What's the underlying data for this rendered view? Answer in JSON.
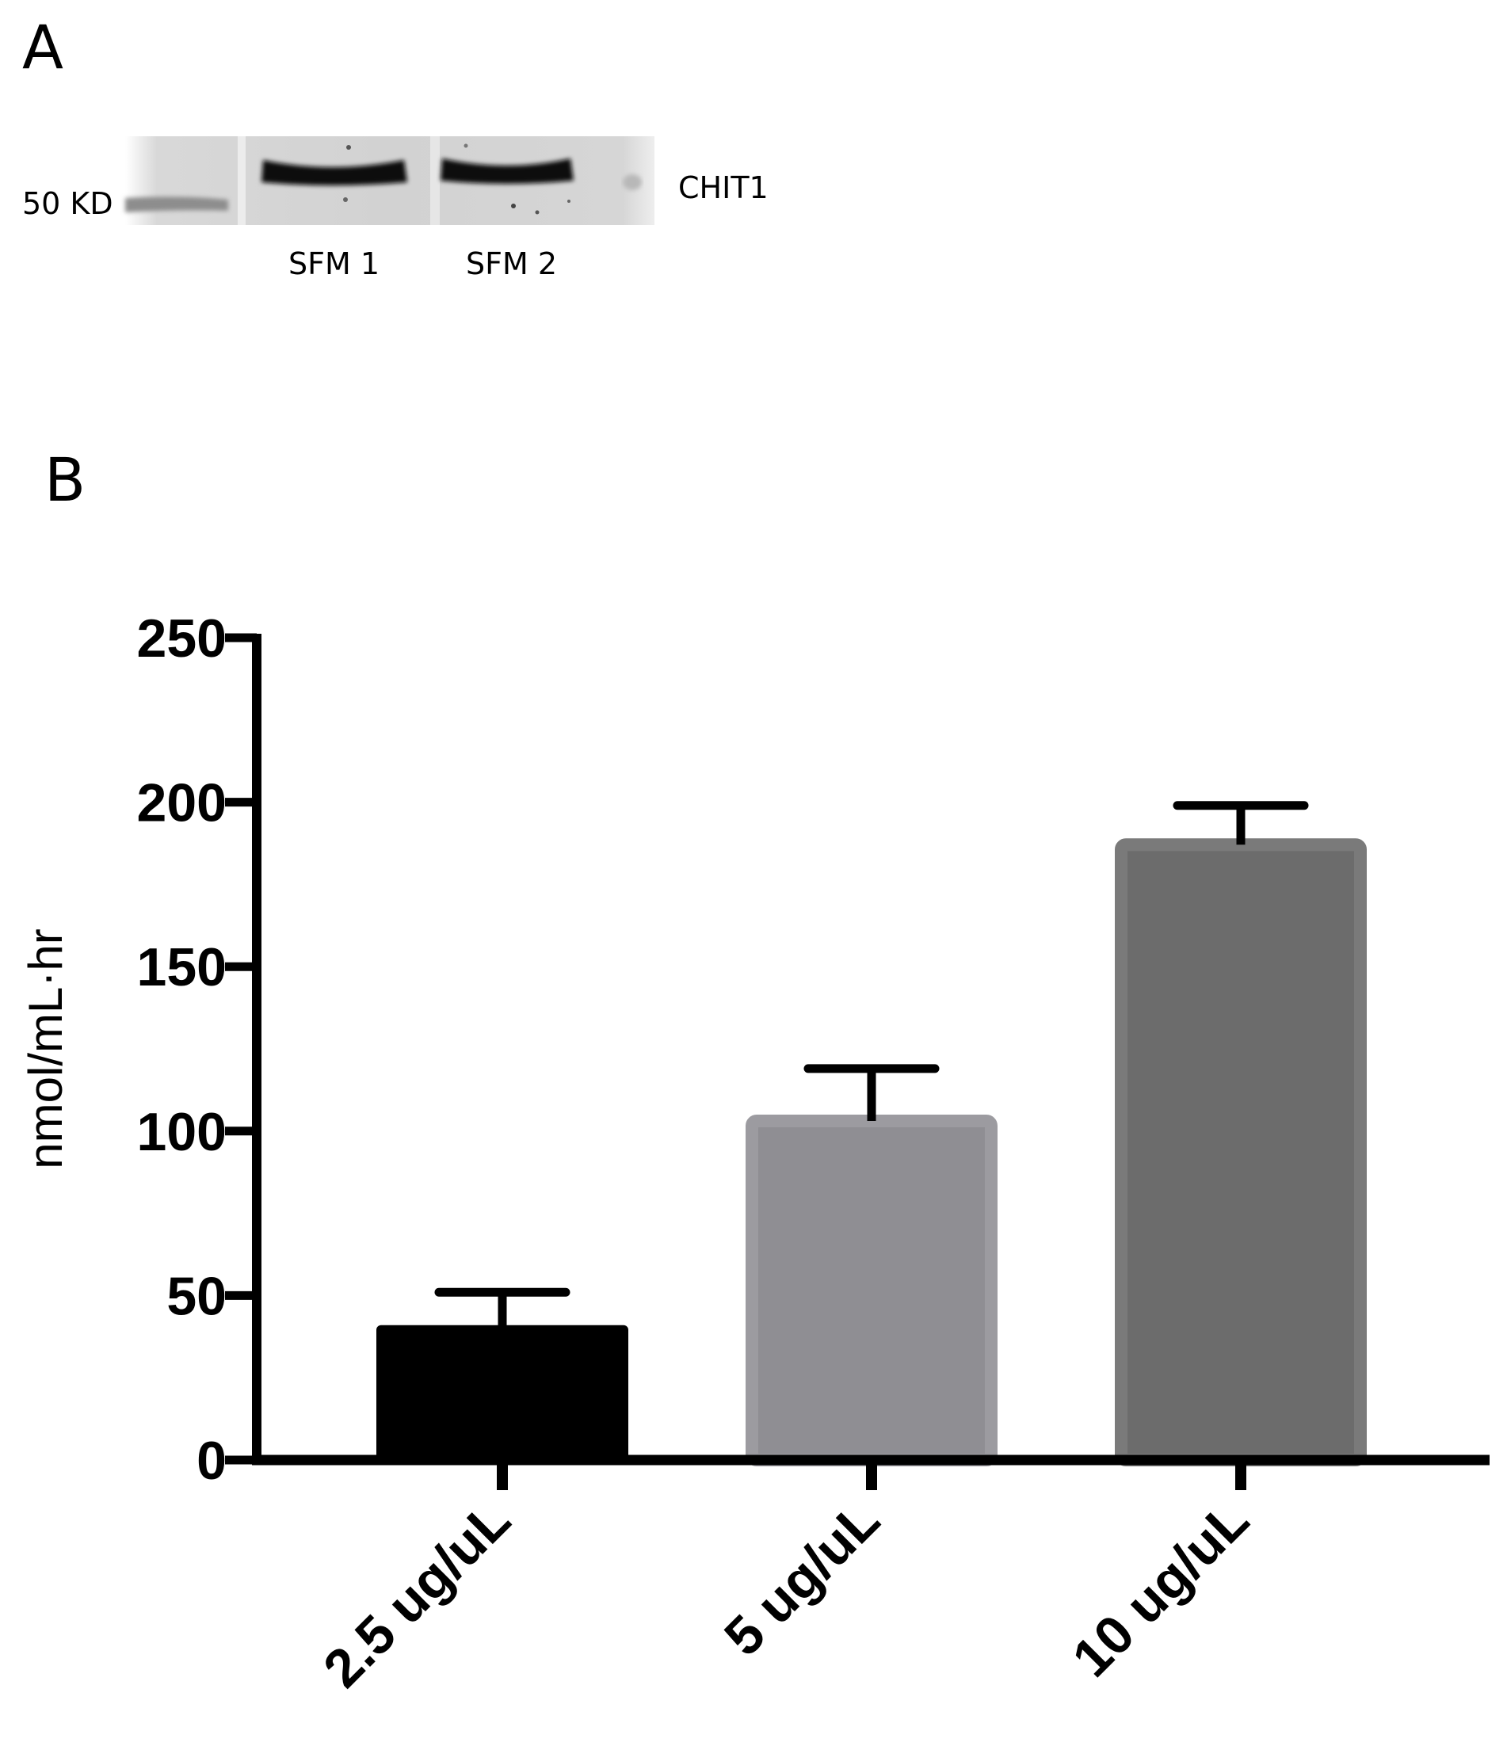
{
  "panel_a": {
    "letter": "A",
    "marker_label": "50 KD",
    "protein_label": "CHIT1",
    "lanes": [
      "SFM 1",
      "SFM 2"
    ]
  },
  "panel_b": {
    "letter": "B"
  },
  "chart_data": {
    "type": "bar",
    "title": "",
    "xlabel": "",
    "ylabel": "nmol/mL·hr",
    "categories": [
      "2.5 ug/uL",
      "5 ug/uL",
      "10 ug/uL"
    ],
    "values": [
      41,
      105,
      189
    ],
    "error": [
      10,
      14,
      10
    ],
    "colors": [
      "#000000",
      "#8f8e93",
      "#6c6c6c"
    ],
    "ylim": [
      0,
      250
    ],
    "yticks": [
      0,
      50,
      100,
      150,
      200,
      250
    ],
    "grid": false,
    "legend": "none"
  }
}
